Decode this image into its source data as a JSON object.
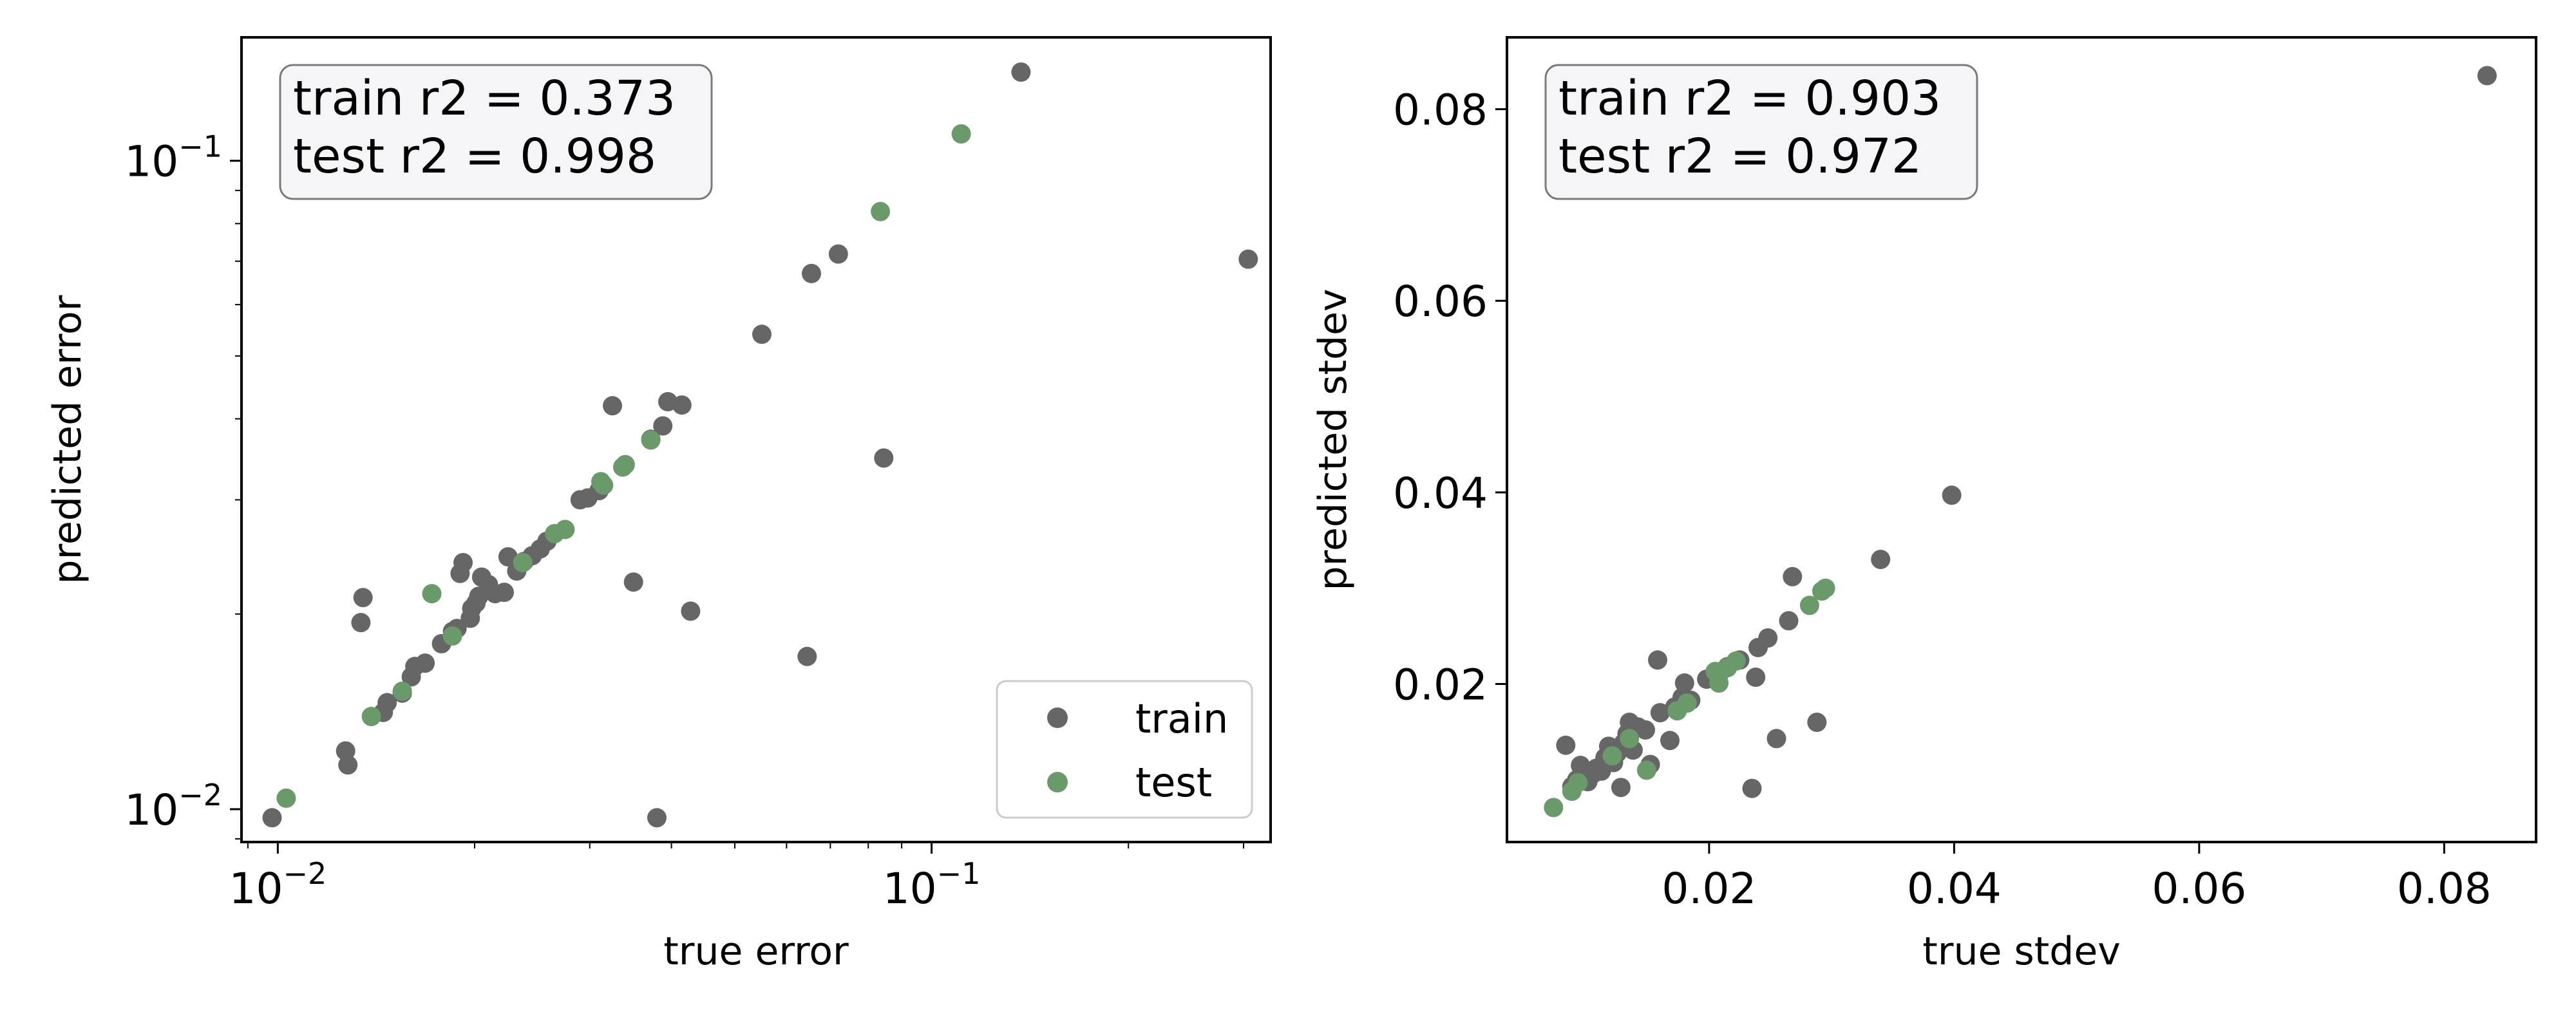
{
  "colors": {
    "train": "#666666",
    "test": "#6a9a6a",
    "box_bg": "#f5f5f7",
    "box_edge": "#7a7a7a"
  },
  "chart_data": [
    {
      "type": "scatter",
      "title": "",
      "xlabel": "true error",
      "ylabel": "predicted error",
      "xscale": "log",
      "yscale": "log",
      "xlim": [
        0.0088,
        0.33
      ],
      "ylim": [
        0.0089,
        0.155
      ],
      "xticks": [
        {
          "value": 0.01,
          "base": "10",
          "exp": "−2"
        },
        {
          "value": 0.1,
          "base": "10",
          "exp": "−1"
        }
      ],
      "yticks": [
        {
          "value": 0.01,
          "base": "10",
          "exp": "−2"
        },
        {
          "value": 0.1,
          "base": "10",
          "exp": "−1"
        }
      ],
      "grid": false,
      "annotation": {
        "lines": [
          "train r2 = 0.373",
          "test r2 = 0.998"
        ],
        "position": "top-left"
      },
      "legend": {
        "position": "bottom-right",
        "entries": [
          "train",
          "test"
        ]
      },
      "series": [
        {
          "name": "train",
          "color": "#666666",
          "points": [
            [
              0.0098,
              0.0097
            ],
            [
              0.0127,
              0.0123
            ],
            [
              0.0128,
              0.0117
            ],
            [
              0.0135,
              0.0212
            ],
            [
              0.0134,
              0.0194
            ],
            [
              0.0145,
              0.0141
            ],
            [
              0.0147,
              0.0146
            ],
            [
              0.0155,
              0.0151
            ],
            [
              0.016,
              0.016
            ],
            [
              0.0162,
              0.0166
            ],
            [
              0.0168,
              0.0168
            ],
            [
              0.0178,
              0.018
            ],
            [
              0.0185,
              0.0188
            ],
            [
              0.0188,
              0.019
            ],
            [
              0.019,
              0.0231
            ],
            [
              0.0192,
              0.024
            ],
            [
              0.0197,
              0.0197
            ],
            [
              0.0198,
              0.0204
            ],
            [
              0.0201,
              0.0208
            ],
            [
              0.0203,
              0.0213
            ],
            [
              0.0205,
              0.0228
            ],
            [
              0.021,
              0.0222
            ],
            [
              0.0215,
              0.0215
            ],
            [
              0.0222,
              0.0216
            ],
            [
              0.0225,
              0.0245
            ],
            [
              0.0232,
              0.0233
            ],
            [
              0.0238,
              0.0241
            ],
            [
              0.0245,
              0.0246
            ],
            [
              0.0252,
              0.0252
            ],
            [
              0.0258,
              0.0259
            ],
            [
              0.029,
              0.03
            ],
            [
              0.0298,
              0.0302
            ],
            [
              0.031,
              0.031
            ],
            [
              0.0325,
              0.0419
            ],
            [
              0.035,
              0.0224
            ],
            [
              0.0372,
              0.0372
            ],
            [
              0.038,
              0.0097
            ],
            [
              0.0388,
              0.039
            ],
            [
              0.0395,
              0.0425
            ],
            [
              0.0415,
              0.042
            ],
            [
              0.0428,
              0.0202
            ],
            [
              0.055,
              0.054
            ],
            [
              0.0645,
              0.0172
            ],
            [
              0.0655,
              0.067
            ],
            [
              0.072,
              0.0718
            ],
            [
              0.0845,
              0.0348
            ],
            [
              0.137,
              0.137
            ],
            [
              0.305,
              0.0705
            ]
          ]
        },
        {
          "name": "test",
          "color": "#6a9a6a",
          "points": [
            [
              0.0103,
              0.0104
            ],
            [
              0.0139,
              0.0139
            ],
            [
              0.0155,
              0.0152
            ],
            [
              0.0172,
              0.0215
            ],
            [
              0.0185,
              0.0185
            ],
            [
              0.0237,
              0.024
            ],
            [
              0.0265,
              0.0266
            ],
            [
              0.0275,
              0.027
            ],
            [
              0.0312,
              0.032
            ],
            [
              0.0315,
              0.0316
            ],
            [
              0.0337,
              0.0337
            ],
            [
              0.034,
              0.034
            ],
            [
              0.0372,
              0.0371
            ],
            [
              0.0835,
              0.0835
            ],
            [
              0.111,
              0.11
            ]
          ]
        }
      ]
    },
    {
      "type": "scatter",
      "title": "",
      "xlabel": "true stdev",
      "ylabel": "predicted stdev",
      "xscale": "linear",
      "yscale": "linear",
      "xlim": [
        0.0035,
        0.0875
      ],
      "ylim": [
        0.0035,
        0.0875
      ],
      "xticks": [
        {
          "value": 0.02,
          "label": "0.02"
        },
        {
          "value": 0.04,
          "label": "0.04"
        },
        {
          "value": 0.06,
          "label": "0.06"
        },
        {
          "value": 0.08,
          "label": "0.08"
        }
      ],
      "yticks": [
        {
          "value": 0.02,
          "label": "0.02"
        },
        {
          "value": 0.04,
          "label": "0.04"
        },
        {
          "value": 0.06,
          "label": "0.06"
        },
        {
          "value": 0.08,
          "label": "0.08"
        }
      ],
      "grid": false,
      "annotation": {
        "lines": [
          "train r2 = 0.903",
          "test r2 = 0.972"
        ],
        "position": "top-left"
      },
      "series": [
        {
          "name": "train",
          "color": "#666666",
          "points": [
            [
              0.0083,
              0.0136
            ],
            [
              0.0088,
              0.0093
            ],
            [
              0.0092,
              0.01
            ],
            [
              0.0095,
              0.0115
            ],
            [
              0.0098,
              0.0103
            ],
            [
              0.0101,
              0.0098
            ],
            [
              0.0105,
              0.0106
            ],
            [
              0.0108,
              0.0112
            ],
            [
              0.0112,
              0.0109
            ],
            [
              0.0115,
              0.0123
            ],
            [
              0.0118,
              0.0135
            ],
            [
              0.0122,
              0.0118
            ],
            [
              0.0125,
              0.0128
            ],
            [
              0.0128,
              0.0092
            ],
            [
              0.013,
              0.0138
            ],
            [
              0.0133,
              0.0148
            ],
            [
              0.0135,
              0.016
            ],
            [
              0.0138,
              0.0131
            ],
            [
              0.0142,
              0.0155
            ],
            [
              0.0148,
              0.0152
            ],
            [
              0.0152,
              0.0116
            ],
            [
              0.0158,
              0.0225
            ],
            [
              0.016,
              0.017
            ],
            [
              0.0168,
              0.0141
            ],
            [
              0.0172,
              0.0176
            ],
            [
              0.0178,
              0.0186
            ],
            [
              0.018,
              0.0201
            ],
            [
              0.0185,
              0.0183
            ],
            [
              0.0198,
              0.0205
            ],
            [
              0.0208,
              0.021
            ],
            [
              0.0215,
              0.0218
            ],
            [
              0.0225,
              0.0225
            ],
            [
              0.0235,
              0.0091
            ],
            [
              0.0238,
              0.0207
            ],
            [
              0.024,
              0.0238
            ],
            [
              0.0248,
              0.0248
            ],
            [
              0.0255,
              0.0143
            ],
            [
              0.0265,
              0.0266
            ],
            [
              0.0268,
              0.0312
            ],
            [
              0.0288,
              0.016
            ],
            [
              0.034,
              0.033
            ],
            [
              0.0398,
              0.0397
            ],
            [
              0.0835,
              0.0835
            ]
          ]
        },
        {
          "name": "test",
          "color": "#6a9a6a",
          "points": [
            [
              0.0073,
              0.0071
            ],
            [
              0.0088,
              0.0088
            ],
            [
              0.0093,
              0.0097
            ],
            [
              0.0121,
              0.0125
            ],
            [
              0.0135,
              0.0143
            ],
            [
              0.0149,
              0.011
            ],
            [
              0.0174,
              0.0172
            ],
            [
              0.0182,
              0.018
            ],
            [
              0.0205,
              0.0213
            ],
            [
              0.0208,
              0.0201
            ],
            [
              0.0215,
              0.0217
            ],
            [
              0.0222,
              0.0224
            ],
            [
              0.0282,
              0.0282
            ],
            [
              0.0292,
              0.0297
            ],
            [
              0.0295,
              0.03
            ]
          ]
        }
      ]
    }
  ]
}
